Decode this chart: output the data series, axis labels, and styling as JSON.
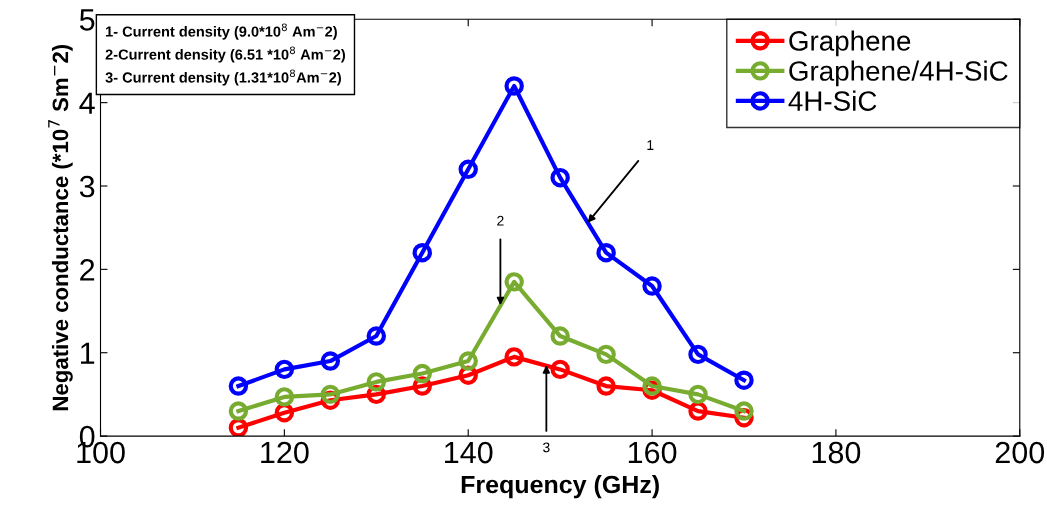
{
  "chart_data": {
    "type": "line",
    "xlabel": "Frequency (GHz)",
    "ylabel": "Negative conductance (*10$^{7}$ Sm$^{−}$2)",
    "x": [
      115,
      120,
      125,
      130,
      135,
      140,
      145,
      150,
      155,
      160,
      165,
      170
    ],
    "series": [
      {
        "name": "Graphene",
        "color": "#ff0000",
        "values": [
          0.1,
          0.28,
          0.43,
          0.5,
          0.6,
          0.73,
          0.95,
          0.8,
          0.6,
          0.55,
          0.3,
          0.22
        ]
      },
      {
        "name": "Graphene/4H-SiC",
        "color": "#77ac30",
        "values": [
          0.3,
          0.47,
          0.5,
          0.65,
          0.75,
          0.9,
          1.85,
          1.2,
          0.98,
          0.6,
          0.5,
          0.3
        ]
      },
      {
        "name": "4H-SiC",
        "color": "#0000ff",
        "values": [
          0.6,
          0.8,
          0.9,
          1.2,
          2.2,
          3.2,
          4.2,
          3.1,
          2.2,
          1.8,
          0.98,
          0.67
        ]
      }
    ],
    "xlim": [
      100,
      200
    ],
    "xticks": [
      100,
      120,
      140,
      160,
      180,
      200
    ],
    "ylim": [
      0,
      5
    ],
    "yticks": [
      0,
      1,
      2,
      3,
      4,
      5
    ],
    "marker": "circle",
    "line_style": "solid",
    "grid": false,
    "legend": "top right",
    "annotations": [
      "1- Current density (9.0*10$^{8}$ Am$^{−}$2)",
      "2-Current density (6.51 *10$^{8}$ Am$^{−}$2)",
      "3- Current density (1.31*10$^{8}$Am$^{−}$2)",
      {
        "text": "1",
        "x": 153,
        "y": 2.56
      },
      {
        "text": "2",
        "x": 143.5,
        "y": 1.57
      },
      {
        "text": "3",
        "x": 148.5,
        "y": 0.85
      }
    ]
  }
}
